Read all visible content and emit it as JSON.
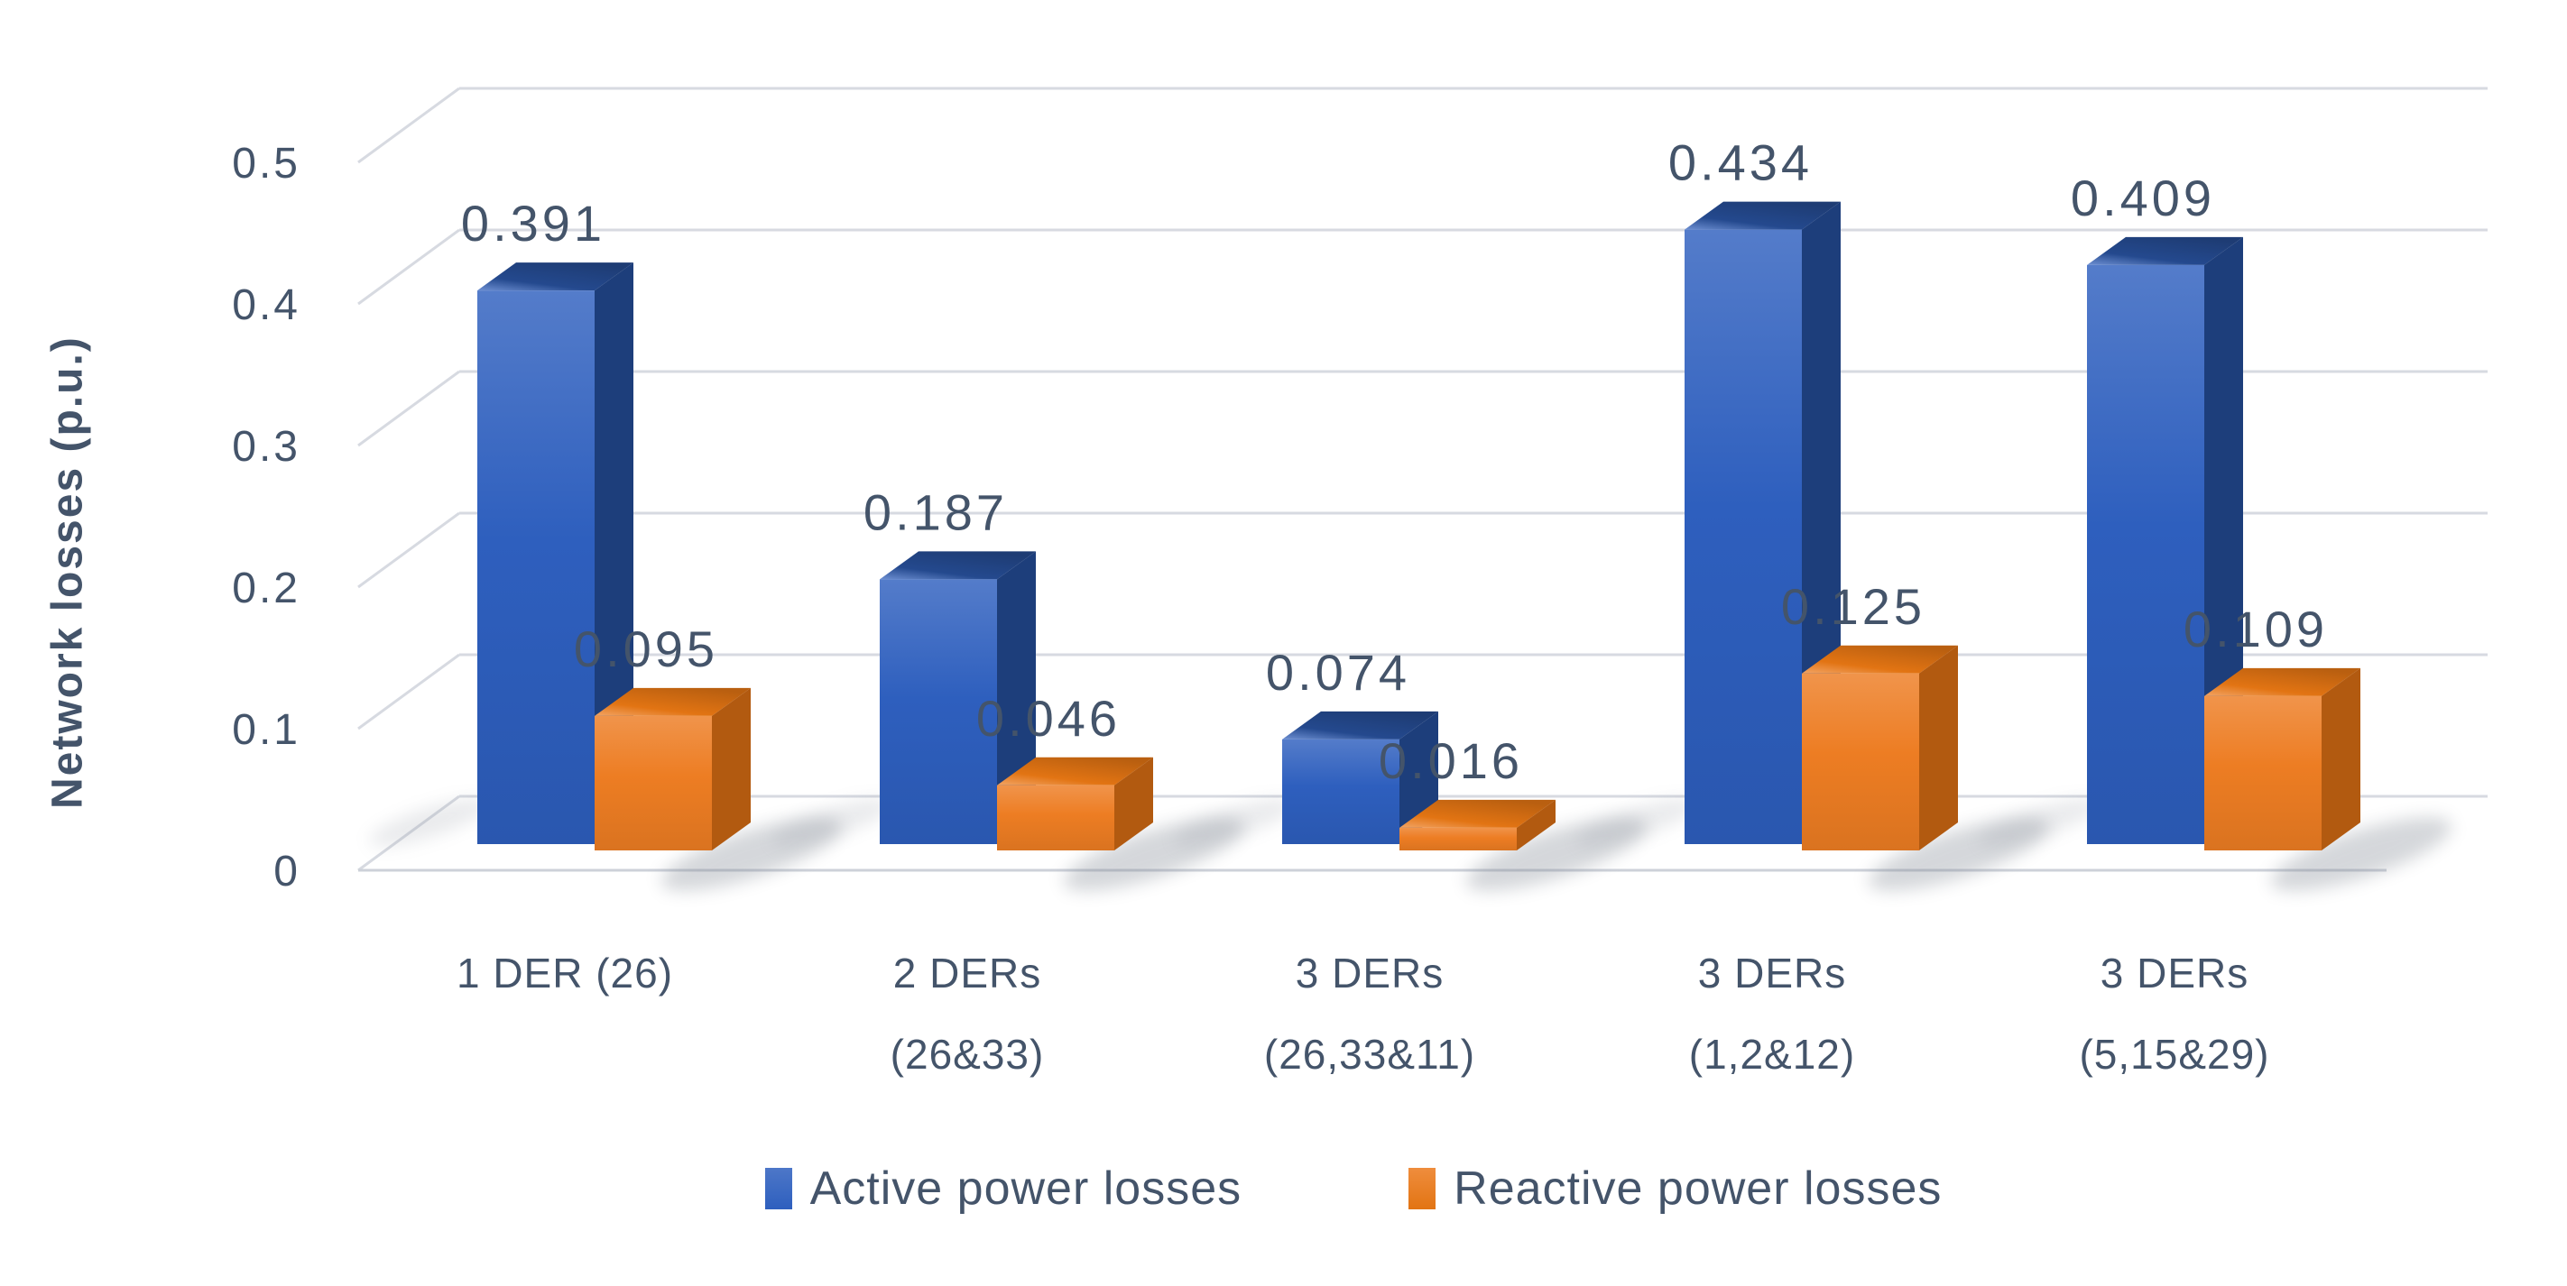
{
  "chart_data": {
    "type": "bar",
    "variant": "3d-clustered-column",
    "title": "",
    "ylabel": "Network losses (p.u.)",
    "xlabel": "",
    "ylim": [
      0,
      0.5
    ],
    "yticks": [
      "0",
      "0.1",
      "0.2",
      "0.3",
      "0.4",
      "0.5"
    ],
    "grid": true,
    "legend_position": "bottom",
    "categories": [
      "1 DER (26)",
      "2 DERs\n(26&33)",
      "3 DERs\n(26,33&11)",
      "3 DERs\n(1,2&12)",
      "3 DERs\n(5,15&29)"
    ],
    "series": [
      {
        "name": "Active power losses",
        "color": "#2E5FBE",
        "color_dark": "#1D3E7B",
        "color_top": "#24498E",
        "values": [
          0.391,
          0.187,
          0.074,
          0.434,
          0.409
        ],
        "labels": [
          "0.391",
          "0.187",
          "0.074",
          "0.434",
          "0.409"
        ]
      },
      {
        "name": "Reactive power losses",
        "color": "#ED7D23",
        "color_dark": "#B25A10",
        "color_top": "#E27413",
        "values": [
          0.095,
          0.046,
          0.016,
          0.125,
          0.109
        ],
        "labels": [
          "0.095",
          "0.046",
          "0.016",
          "0.125",
          "0.109"
        ]
      }
    ],
    "text_color": "#44546A",
    "gridline_color": "#D7DAE1",
    "floor_line_color": "#CDD1D9"
  }
}
